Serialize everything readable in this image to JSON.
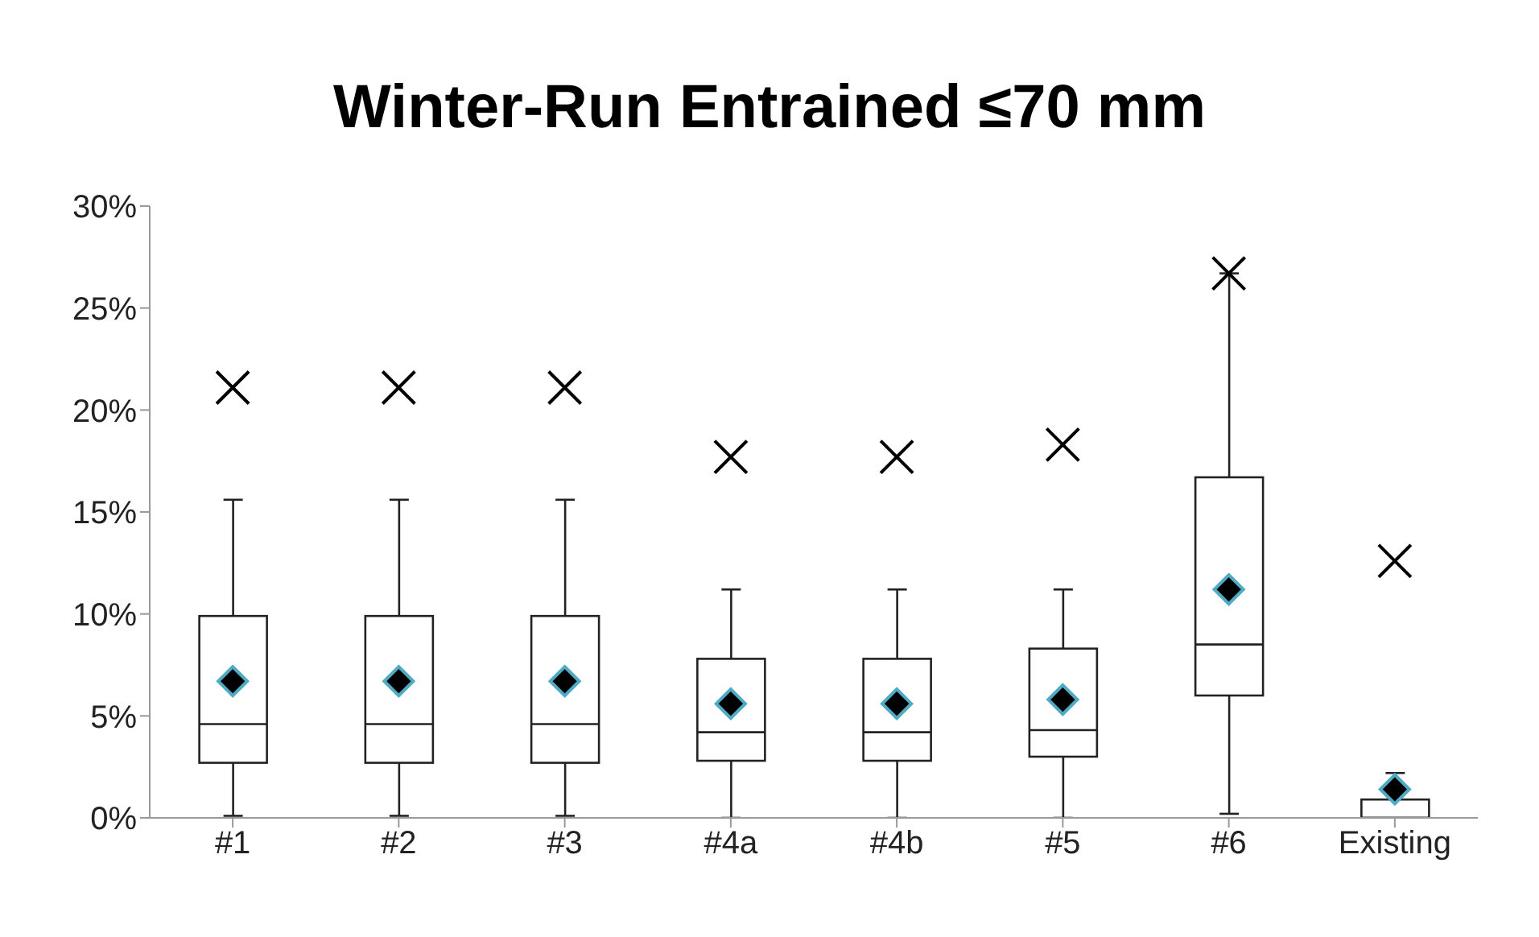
{
  "chart_data": {
    "type": "box",
    "title": "Winter-Run Entrained ≤70 mm",
    "categories": [
      "#1",
      "#2",
      "#3",
      "#4a",
      "#4b",
      "#5",
      "#6",
      "Existing"
    ],
    "boxes": [
      {
        "low": 0.1,
        "q1": 2.7,
        "median": 4.6,
        "q3": 9.9,
        "high": 15.6,
        "mean": 6.7,
        "outliers": [
          21.1
        ]
      },
      {
        "low": 0.1,
        "q1": 2.7,
        "median": 4.6,
        "q3": 9.9,
        "high": 15.6,
        "mean": 6.7,
        "outliers": [
          21.1
        ]
      },
      {
        "low": 0.1,
        "q1": 2.7,
        "median": 4.6,
        "q3": 9.9,
        "high": 15.6,
        "mean": 6.7,
        "outliers": [
          21.1
        ]
      },
      {
        "low": 0,
        "q1": 2.8,
        "median": 4.2,
        "q3": 7.8,
        "high": 11.2,
        "mean": 5.6,
        "outliers": [
          17.7
        ]
      },
      {
        "low": 0,
        "q1": 2.8,
        "median": 4.2,
        "q3": 7.8,
        "high": 11.2,
        "mean": 5.6,
        "outliers": [
          17.7
        ]
      },
      {
        "low": 0,
        "q1": 3.0,
        "median": 4.3,
        "q3": 8.3,
        "high": 11.2,
        "mean": 5.8,
        "outliers": [
          18.3
        ]
      },
      {
        "low": 0.2,
        "q1": 6.0,
        "median": 8.5,
        "q3": 16.7,
        "high": 26.7,
        "mean": 11.2,
        "outliers": [
          26.7
        ]
      },
      {
        "low": 0,
        "q1": 0,
        "median": 0,
        "q3": 0.9,
        "high": 2.2,
        "mean": 1.4,
        "outliers": [
          12.6
        ]
      }
    ],
    "ylim": [
      0,
      30
    ],
    "yticks": [
      {
        "value": 0,
        "label": "0%"
      },
      {
        "value": 5,
        "label": "5%"
      },
      {
        "value": 10,
        "label": "10%"
      },
      {
        "value": 15,
        "label": "15%"
      },
      {
        "value": 20,
        "label": "20%"
      },
      {
        "value": 25,
        "label": "25%"
      },
      {
        "value": 30,
        "label": "30%"
      }
    ]
  }
}
